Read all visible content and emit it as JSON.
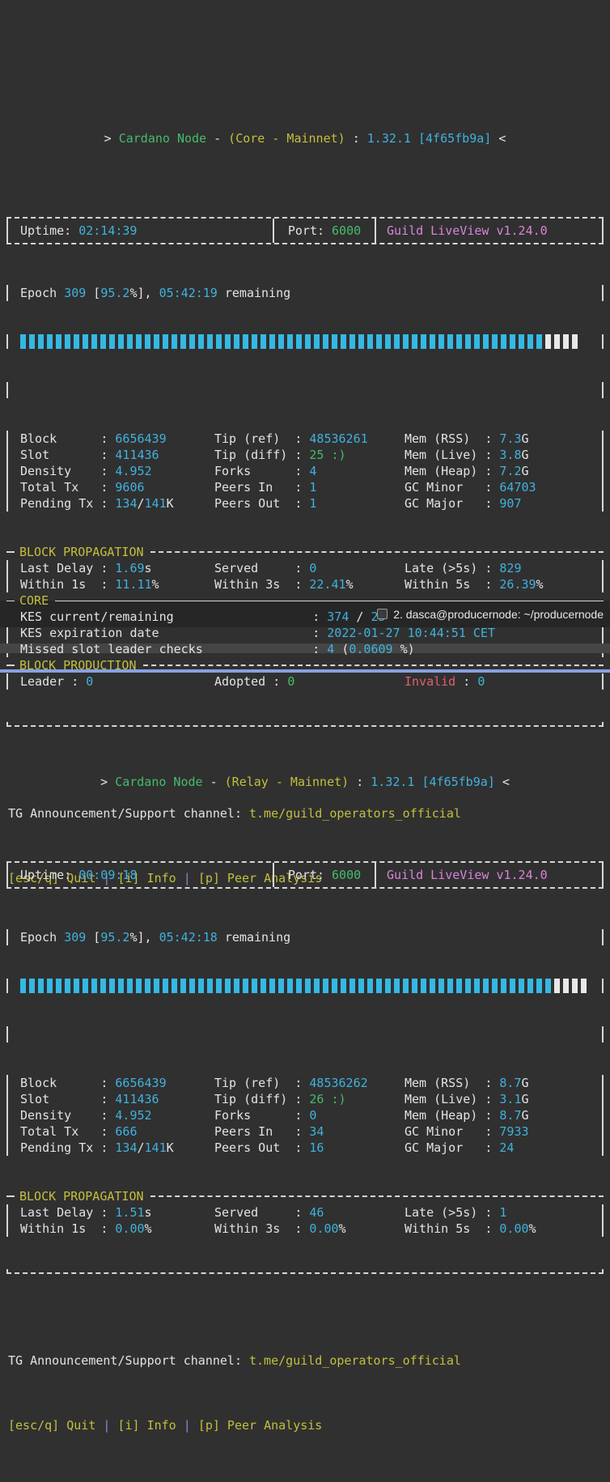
{
  "colors": {
    "bg": "#303030",
    "fg": "#e3e3e3",
    "cyan": "#3fb2de",
    "green": "#45bc6b",
    "yellow": "#c4bf3c",
    "magenta": "#d884da",
    "red": "#e0606d",
    "border": "#d6d6d6",
    "pipe": "#7b90d8",
    "tabbar_bg": "#262626",
    "strip_bg": "#454545",
    "divider_blue": "#87a0e3",
    "bar_filled": "#35b8e4",
    "bar_empty": "#e8e8e8"
  },
  "tab_bar": {
    "icon": "terminal-window-icon",
    "title": "2. dasca@producernode: ~/producernode"
  },
  "panes": [
    {
      "node_type": "Core",
      "header": [
        [
          "> ",
          "fg"
        ],
        [
          "Cardano Node",
          "green"
        ],
        [
          " - ",
          "fg"
        ],
        [
          "(Core - Mainnet)",
          "yellow"
        ],
        [
          " : ",
          "fg"
        ],
        [
          "1.32.1 [4f65fb9a]",
          "cyan"
        ],
        [
          " <",
          "fg"
        ]
      ],
      "uptime_label": "Uptime:",
      "uptime_value": "02:14:39",
      "port_label": "Port:",
      "port_value": "6000",
      "brand": "Guild LiveView v1.24.0",
      "epoch": [
        [
          "Epoch ",
          "fg"
        ],
        [
          "309",
          "cyan"
        ],
        [
          " [",
          "fg"
        ],
        [
          "95.2",
          "cyan"
        ],
        [
          "%], ",
          "fg"
        ],
        [
          "05:42:19",
          "cyan"
        ],
        [
          " remaining",
          "fg"
        ]
      ],
      "progress": {
        "percent": 95.2,
        "filled_bars": 59,
        "empty_bars": 4
      },
      "stats_columns": [
        {
          "rows": [
            {
              "label": "Block",
              "value": [
                [
                  "6656439",
                  "cyan"
                ]
              ]
            },
            {
              "label": "Slot",
              "value": [
                [
                  "411436",
                  "cyan"
                ]
              ]
            },
            {
              "label": "Density",
              "value": [
                [
                  "4.952",
                  "cyan"
                ]
              ]
            },
            {
              "label": "Total Tx",
              "value": [
                [
                  "9606",
                  "cyan"
                ]
              ]
            },
            {
              "label": "Pending Tx",
              "value": [
                [
                  "134",
                  "cyan"
                ],
                [
                  "/",
                  "fg"
                ],
                [
                  "141",
                  "cyan"
                ],
                [
                  "K",
                  "fg"
                ]
              ]
            }
          ]
        },
        {
          "rows": [
            {
              "label": "Tip (ref)",
              "value": [
                [
                  "48536261",
                  "cyan"
                ]
              ]
            },
            {
              "label": "Tip (diff)",
              "value": [
                [
                  "25 :)",
                  "green"
                ]
              ]
            },
            {
              "label": "Forks",
              "value": [
                [
                  "4",
                  "cyan"
                ]
              ]
            },
            {
              "label": "Peers In",
              "value": [
                [
                  "1",
                  "cyan"
                ]
              ]
            },
            {
              "label": "Peers Out",
              "value": [
                [
                  "1",
                  "cyan"
                ]
              ]
            }
          ]
        },
        {
          "rows": [
            {
              "label": "Mem (RSS)",
              "value": [
                [
                  "7.3",
                  "cyan"
                ],
                [
                  "G",
                  "fg"
                ]
              ]
            },
            {
              "label": "Mem (Live)",
              "value": [
                [
                  "3.8",
                  "cyan"
                ],
                [
                  "G",
                  "fg"
                ]
              ]
            },
            {
              "label": "Mem (Heap)",
              "value": [
                [
                  "7.2",
                  "cyan"
                ],
                [
                  "G",
                  "fg"
                ]
              ]
            },
            {
              "label": "GC Minor",
              "value": [
                [
                  "64703",
                  "cyan"
                ]
              ]
            },
            {
              "label": "GC Major",
              "value": [
                [
                  "907",
                  "cyan"
                ]
              ]
            }
          ]
        }
      ],
      "sections": [
        {
          "title": "BLOCK PROPAGATION",
          "line": "dashed",
          "padded_labels": true,
          "rows": [
            [
              {
                "label": "Last Delay",
                "value": [
                  [
                    "1.69",
                    "cyan"
                  ],
                  [
                    "s",
                    "fg"
                  ]
                ]
              },
              {
                "label": "Served",
                "value": [
                  [
                    "0",
                    "cyan"
                  ]
                ]
              },
              {
                "label": "Late (>5s)",
                "value": [
                  [
                    "829",
                    "cyan"
                  ]
                ]
              }
            ],
            [
              {
                "label": "Within 1s",
                "value": [
                  [
                    "11.11",
                    "cyan"
                  ],
                  [
                    "%",
                    "fg"
                  ]
                ]
              },
              {
                "label": "Within 3s",
                "value": [
                  [
                    "22.41",
                    "cyan"
                  ],
                  [
                    "%",
                    "fg"
                  ]
                ]
              },
              {
                "label": "Within 5s",
                "value": [
                  [
                    "26.39",
                    "cyan"
                  ],
                  [
                    "%",
                    "fg"
                  ]
                ]
              }
            ]
          ]
        },
        {
          "title": "CORE",
          "line": "solid",
          "wide_rows": [
            {
              "label": "KES current/remaining",
              "value": [
                [
                  "374",
                  "cyan"
                ],
                [
                  " / ",
                  "fg"
                ],
                [
                  "25",
                  "cyan"
                ]
              ]
            },
            {
              "label": "KES expiration date",
              "value": [
                [
                  "2022-01-27 10:44:51 CET",
                  "cyan"
                ]
              ]
            },
            {
              "label": "Missed slot leader checks",
              "value": [
                [
                  "4",
                  "cyan"
                ],
                [
                  " (",
                  "fg"
                ],
                [
                  "0.0609",
                  "cyan"
                ],
                [
                  " %)",
                  "fg"
                ]
              ]
            }
          ]
        },
        {
          "title": "BLOCK PRODUCTION",
          "line": "dashed",
          "padded_labels": false,
          "rows": [
            [
              {
                "label": "Leader",
                "value": [
                  [
                    "0",
                    "cyan"
                  ]
                ]
              },
              {
                "label": "Adopted",
                "value": [
                  [
                    "0",
                    "green"
                  ]
                ]
              },
              {
                "label": "Invalid",
                "label_color": "red",
                "value": [
                  [
                    "0",
                    "cyan"
                  ]
                ]
              }
            ]
          ]
        }
      ],
      "tg_label": "TG Announcement/Support channel:",
      "tg_link": "t.me/guild_operators_official",
      "footer": [
        [
          "[esc/q] Quit",
          "yellow"
        ],
        [
          " | ",
          "pipe"
        ],
        [
          "[i] Info",
          "yellow"
        ],
        [
          " | ",
          "pipe"
        ],
        [
          "[p] Peer Analysis",
          "yellow"
        ]
      ]
    },
    {
      "node_type": "Relay",
      "header": [
        [
          "> ",
          "fg"
        ],
        [
          "Cardano Node",
          "green"
        ],
        [
          " - ",
          "fg"
        ],
        [
          "(Relay - Mainnet)",
          "yellow"
        ],
        [
          " : ",
          "fg"
        ],
        [
          "1.32.1 [4f65fb9a]",
          "cyan"
        ],
        [
          " <",
          "fg"
        ]
      ],
      "uptime_label": "Uptime:",
      "uptime_value": "00:09:18",
      "port_label": "Port:",
      "port_value": "6000",
      "brand": "Guild LiveView v1.24.0",
      "epoch": [
        [
          "Epoch ",
          "fg"
        ],
        [
          "309",
          "cyan"
        ],
        [
          " [",
          "fg"
        ],
        [
          "95.2",
          "cyan"
        ],
        [
          "%], ",
          "fg"
        ],
        [
          "05:42:18",
          "cyan"
        ],
        [
          " remaining",
          "fg"
        ]
      ],
      "progress": {
        "percent": 95.2,
        "filled_bars": 60,
        "empty_bars": 4
      },
      "stats_columns": [
        {
          "rows": [
            {
              "label": "Block",
              "value": [
                [
                  "6656439",
                  "cyan"
                ]
              ]
            },
            {
              "label": "Slot",
              "value": [
                [
                  "411436",
                  "cyan"
                ]
              ]
            },
            {
              "label": "Density",
              "value": [
                [
                  "4.952",
                  "cyan"
                ]
              ]
            },
            {
              "label": "Total Tx",
              "value": [
                [
                  "666",
                  "cyan"
                ]
              ]
            },
            {
              "label": "Pending Tx",
              "value": [
                [
                  "134",
                  "cyan"
                ],
                [
                  "/",
                  "fg"
                ],
                [
                  "141",
                  "cyan"
                ],
                [
                  "K",
                  "fg"
                ]
              ]
            }
          ]
        },
        {
          "rows": [
            {
              "label": "Tip (ref)",
              "value": [
                [
                  "48536262",
                  "cyan"
                ]
              ]
            },
            {
              "label": "Tip (diff)",
              "value": [
                [
                  "26 :)",
                  "green"
                ]
              ]
            },
            {
              "label": "Forks",
              "value": [
                [
                  "0",
                  "cyan"
                ]
              ]
            },
            {
              "label": "Peers In",
              "value": [
                [
                  "34",
                  "cyan"
                ]
              ]
            },
            {
              "label": "Peers Out",
              "value": [
                [
                  "16",
                  "cyan"
                ]
              ]
            }
          ]
        },
        {
          "rows": [
            {
              "label": "Mem (RSS)",
              "value": [
                [
                  "8.7",
                  "cyan"
                ],
                [
                  "G",
                  "fg"
                ]
              ]
            },
            {
              "label": "Mem (Live)",
              "value": [
                [
                  "3.1",
                  "cyan"
                ],
                [
                  "G",
                  "fg"
                ]
              ]
            },
            {
              "label": "Mem (Heap)",
              "value": [
                [
                  "8.7",
                  "cyan"
                ],
                [
                  "G",
                  "fg"
                ]
              ]
            },
            {
              "label": "GC Minor",
              "value": [
                [
                  "7933",
                  "cyan"
                ]
              ]
            },
            {
              "label": "GC Major",
              "value": [
                [
                  "24",
                  "cyan"
                ]
              ]
            }
          ]
        }
      ],
      "sections": [
        {
          "title": "BLOCK PROPAGATION",
          "line": "dashed",
          "padded_labels": true,
          "rows": [
            [
              {
                "label": "Last Delay",
                "value": [
                  [
                    "1.51",
                    "cyan"
                  ],
                  [
                    "s",
                    "fg"
                  ]
                ]
              },
              {
                "label": "Served",
                "value": [
                  [
                    "46",
                    "cyan"
                  ]
                ]
              },
              {
                "label": "Late (>5s)",
                "value": [
                  [
                    "1",
                    "cyan"
                  ]
                ]
              }
            ],
            [
              {
                "label": "Within 1s",
                "value": [
                  [
                    "0.00",
                    "cyan"
                  ],
                  [
                    "%",
                    "fg"
                  ]
                ]
              },
              {
                "label": "Within 3s",
                "value": [
                  [
                    "0.00",
                    "cyan"
                  ],
                  [
                    "%",
                    "fg"
                  ]
                ]
              },
              {
                "label": "Within 5s",
                "value": [
                  [
                    "0.00",
                    "cyan"
                  ],
                  [
                    "%",
                    "fg"
                  ]
                ]
              }
            ]
          ]
        }
      ],
      "tg_label": "TG Announcement/Support channel:",
      "tg_link": "t.me/guild_operators_official",
      "footer": [
        [
          "[esc/q] Quit",
          "yellow"
        ],
        [
          " | ",
          "pipe"
        ],
        [
          "[i] Info",
          "yellow"
        ],
        [
          " | ",
          "pipe"
        ],
        [
          "[p] Peer Analysis",
          "yellow"
        ]
      ]
    }
  ]
}
